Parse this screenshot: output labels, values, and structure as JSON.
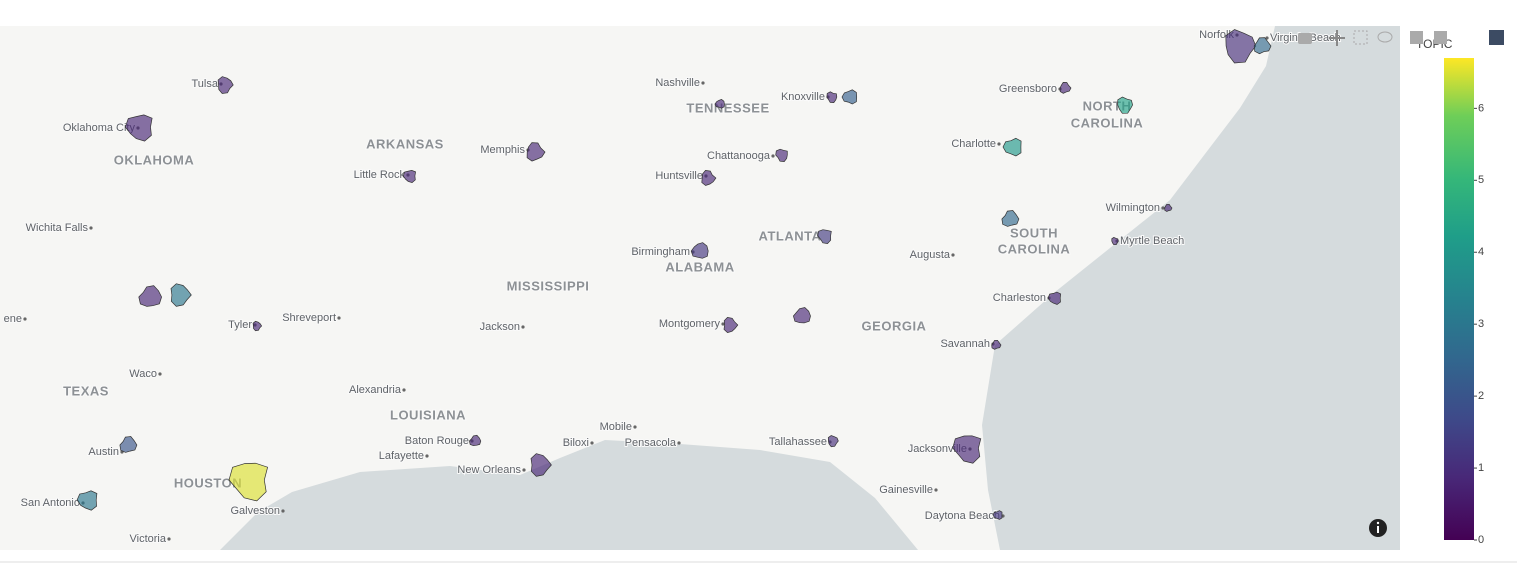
{
  "map": {
    "colorbar": {
      "title": "TOPIC",
      "range": [
        0,
        6.7
      ],
      "ticks": [
        0,
        1,
        2,
        3,
        4,
        5,
        6
      ]
    },
    "places": [
      "Tulsa",
      "Oklahoma City",
      "Wichita Falls",
      "Little Rock",
      "Memphis",
      "Nashville",
      "Knoxville",
      "Chattanooga",
      "Huntsville",
      "Birmingham",
      "Montgomery",
      "Greensboro",
      "Charlotte",
      "Wilmington",
      "Myrtle Beach",
      "Augusta",
      "Charleston",
      "Savannah",
      "Jacksonville",
      "Gainesville",
      "Daytona Beach",
      "Tallahassee",
      "Mobile",
      "Pensacola",
      "Biloxi",
      "New Orleans",
      "Baton Rouge",
      "Lafayette",
      "Alexandria",
      "Jackson",
      "Shreveport",
      "Tyler",
      "Waco",
      "Austin",
      "San Antonio",
      "Galveston",
      "Victoria",
      "Norfolk",
      "Virginia Beach",
      "ene"
    ],
    "states": [
      "OKLAHOMA",
      "ARKANSAS",
      "TENNESSEE",
      "MISSISSIPPI",
      "ALABAMA",
      "ATLANTA",
      "GEORGIA",
      "TEXAS",
      "LOUISIANA",
      "HOUSTON",
      "NORTH",
      "CAROLINA",
      "SOUTH",
      "CAROLINA"
    ],
    "regions": [
      6.5,
      3,
      0.8,
      0.8,
      0.8,
      2,
      3,
      1,
      2.5,
      4,
      4.3,
      0.8,
      2.3,
      0.8,
      0.8,
      0.8,
      0.8,
      0.8,
      1.2,
      1.3,
      0.8,
      0.8,
      0.8,
      0.8,
      0.8,
      0.8,
      0.8,
      2.5,
      0.8,
      1,
      0.8,
      1.2,
      0.8,
      0.8
    ]
  }
}
